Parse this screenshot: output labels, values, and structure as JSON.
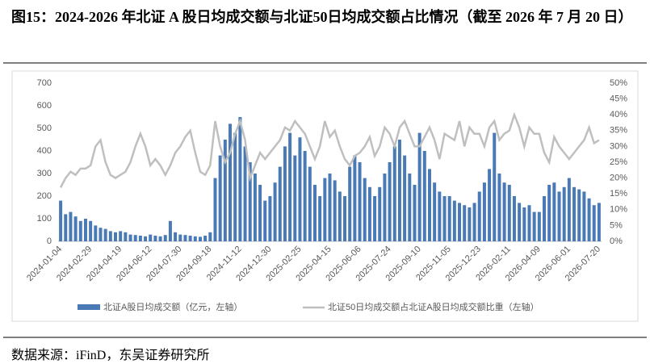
{
  "chart_data": {
    "type": "bar-line",
    "title": "图15：2024-2026 年北证 A 股日均成交额与北证50日均成交额占比情况（截至 2026 年 7 月 20 日）",
    "source": "数据来源：iFinD，东吴证券研究所",
    "categories": [
      "2024-01-04",
      null,
      null,
      null,
      null,
      null,
      "2024-02-29",
      null,
      null,
      null,
      null,
      null,
      "2024-04-19",
      null,
      null,
      null,
      null,
      null,
      "2024-06-12",
      null,
      null,
      null,
      null,
      null,
      "2024-07-30",
      null,
      null,
      null,
      null,
      null,
      "2024-09-18",
      null,
      null,
      null,
      null,
      null,
      "2024-11-12",
      null,
      null,
      null,
      null,
      null,
      "2024-12-30",
      null,
      null,
      null,
      null,
      null,
      "2025-02-25",
      null,
      null,
      null,
      null,
      null,
      "2025-04-15",
      null,
      null,
      null,
      null,
      null,
      "2025-06-06",
      null,
      null,
      null,
      null,
      null,
      "2025-07-24",
      null,
      null,
      null,
      null,
      null,
      "2025-09-10",
      null,
      null,
      null,
      null,
      null,
      "2025-11-05",
      null,
      null,
      null,
      null,
      null,
      "2025-12-23",
      null,
      null,
      null,
      null,
      null,
      "2026-02-11",
      null,
      null,
      null,
      null,
      null,
      "2026-04-09",
      null,
      null,
      null,
      null,
      null,
      "2026-06-01",
      null,
      null,
      null,
      null,
      null,
      "2026-07-20"
    ],
    "series": [
      {
        "name": "北证A股日均成交额（亿元，左轴）",
        "type": "bar",
        "color": "#4a7ab5",
        "values": [
          180,
          120,
          130,
          110,
          90,
          100,
          90,
          70,
          60,
          55,
          45,
          40,
          45,
          40,
          30,
          28,
          25,
          22,
          30,
          25,
          22,
          28,
          90,
          40,
          30,
          28,
          25,
          22,
          20,
          25,
          40,
          280,
          380,
          450,
          520,
          480,
          550,
          420,
          350,
          300,
          250,
          180,
          200,
          260,
          330,
          420,
          480,
          380,
          460,
          400,
          330,
          250,
          200,
          280,
          300,
          270,
          220,
          200,
          330,
          380,
          350,
          280,
          240,
          200,
          240,
          300,
          350,
          420,
          450,
          380,
          300,
          250,
          480,
          400,
          320,
          260,
          220,
          200,
          200,
          180,
          170,
          160,
          150,
          170,
          220,
          260,
          320,
          480,
          300,
          260,
          250,
          200,
          170,
          150,
          160,
          130,
          130,
          200,
          250,
          260,
          220,
          240,
          280,
          240,
          230,
          220,
          190,
          160,
          170
        ]
      },
      {
        "name": "北证50日均成交额占北证A股日均成交额比重（左轴）",
        "type": "line",
        "axis": "y2",
        "color": "#bfbfbf",
        "values": [
          17,
          20,
          22,
          21,
          23,
          23,
          24,
          30,
          32,
          25,
          21,
          20,
          21,
          22,
          25,
          30,
          34,
          30,
          24,
          26,
          24,
          21,
          24,
          28,
          30,
          33,
          35,
          28,
          22,
          21,
          24,
          38,
          30,
          25,
          28,
          34,
          38,
          32,
          20,
          24,
          28,
          26,
          28,
          30,
          32,
          36,
          35,
          38,
          36,
          34,
          30,
          26,
          30,
          38,
          33,
          35,
          30,
          26,
          24,
          27,
          28,
          30,
          33,
          27,
          30,
          36,
          34,
          30,
          36,
          38,
          34,
          30,
          30,
          33,
          36,
          32,
          26,
          34,
          33,
          32,
          38,
          30,
          36,
          34,
          34,
          30,
          36,
          38,
          32,
          34,
          35,
          40,
          36,
          30,
          36,
          34,
          34,
          28,
          25,
          33,
          30,
          28,
          26,
          28,
          30,
          32,
          36,
          31,
          32
        ]
      }
    ],
    "ylim": [
      0,
      700
    ],
    "yticks": [
      0,
      100,
      200,
      300,
      400,
      500,
      600,
      700
    ],
    "y2lim": [
      0,
      50
    ],
    "y2ticks": [
      {
        "value": 0,
        "label": "0%"
      },
      {
        "value": 5,
        "label": "5%"
      },
      {
        "value": 10,
        "label": "10%"
      },
      {
        "value": 15,
        "label": "15%"
      },
      {
        "value": 20,
        "label": "20%"
      },
      {
        "value": 25,
        "label": "25%"
      },
      {
        "value": 30,
        "label": "30%"
      },
      {
        "value": 35,
        "label": "35%"
      },
      {
        "value": 40,
        "label": "40%"
      },
      {
        "value": 45,
        "label": "45%"
      },
      {
        "value": 50,
        "label": "50%"
      }
    ]
  }
}
